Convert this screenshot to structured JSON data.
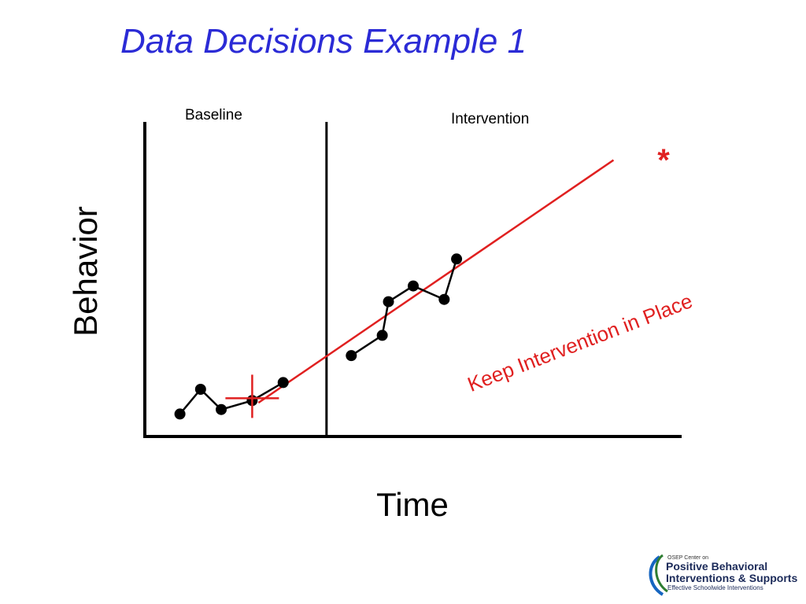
{
  "slide": {
    "title": "Data Decisions Example 1"
  },
  "chart_data": {
    "type": "line",
    "xlabel": "Time",
    "ylabel": "Behavior",
    "xlim": [
      0,
      26
    ],
    "ylim": [
      0,
      14
    ],
    "phases": [
      {
        "label": "Baseline"
      },
      {
        "label": "Intervention"
      }
    ],
    "phase_change_x": 8.8,
    "series": [
      {
        "phase": "Baseline",
        "x": [
          1.7,
          2.7,
          3.7,
          5.2,
          6.7
        ],
        "y": [
          1.0,
          2.1,
          1.2,
          1.6,
          2.4
        ]
      },
      {
        "phase": "Intervention",
        "x": [
          10.0,
          11.5,
          11.8,
          13.0,
          14.5,
          15.1
        ],
        "y": [
          3.6,
          4.5,
          6.0,
          6.7,
          6.1,
          7.9
        ]
      }
    ],
    "trend_line": {
      "x": [
        5.5,
        22.7
      ],
      "y": [
        1.5,
        12.3
      ],
      "color": "#e02020"
    },
    "median_marker": {
      "x": 5.2,
      "y": 1.7,
      "color": "#e02020"
    },
    "goal_marker": {
      "symbol": "*",
      "x": 23.3,
      "y": 12.7,
      "color": "#e02020"
    },
    "annotation": {
      "text": "Keep Intervention in Place",
      "color": "#e02020"
    },
    "grid": false,
    "axis_color": "#000000",
    "series_color": "#000000"
  },
  "logo": {
    "line1": "OSEP Center on",
    "line2": "Positive Behavioral",
    "line3": "Interventions & Supports",
    "line4": "Effective Schoolwide Interventions",
    "accent_colors": [
      "#2e7d32",
      "#1565c0"
    ]
  }
}
